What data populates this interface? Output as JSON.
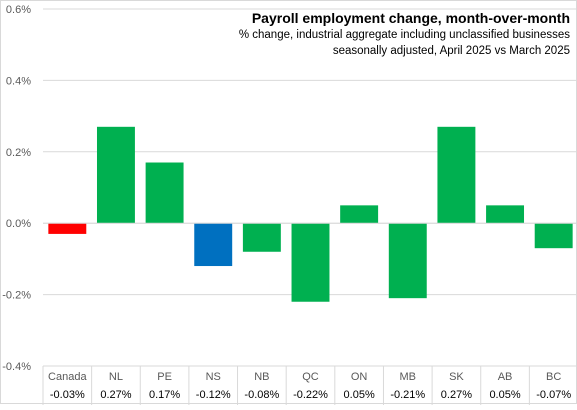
{
  "chart_data": {
    "type": "bar",
    "title": "Payroll employment  change, month-over-month",
    "subtitle_lines": [
      "% change, industrial aggregate  including unclassified businesses",
      "seasonally adjusted, April 2025 vs March 2025"
    ],
    "categories": [
      "Canada",
      "NL",
      "PE",
      "NS",
      "NB",
      "QC",
      "ON",
      "MB",
      "SK",
      "AB",
      "BC"
    ],
    "values": [
      -0.03,
      0.27,
      0.17,
      -0.12,
      -0.08,
      -0.22,
      0.05,
      -0.21,
      0.27,
      0.05,
      -0.07
    ],
    "value_labels": [
      "-0.03%",
      "0.27%",
      "0.17%",
      "-0.12%",
      "-0.08%",
      "-0.22%",
      "0.05%",
      "-0.21%",
      "0.27%",
      "0.05%",
      "-0.07%"
    ],
    "bar_colors": [
      "#ff0000",
      "#00b050",
      "#00b050",
      "#0070c0",
      "#00b050",
      "#00b050",
      "#00b050",
      "#00b050",
      "#00b050",
      "#00b050",
      "#00b050"
    ],
    "yticks": [
      -0.4,
      -0.2,
      0.0,
      0.2,
      0.4,
      0.6
    ],
    "ytick_labels": [
      "-0.4%",
      "-0.2%",
      "0.0%",
      "0.2%",
      "0.4%",
      "0.6%"
    ],
    "ylim": [
      -0.4,
      0.6
    ],
    "grid": true,
    "xlabel": "",
    "ylabel": ""
  }
}
